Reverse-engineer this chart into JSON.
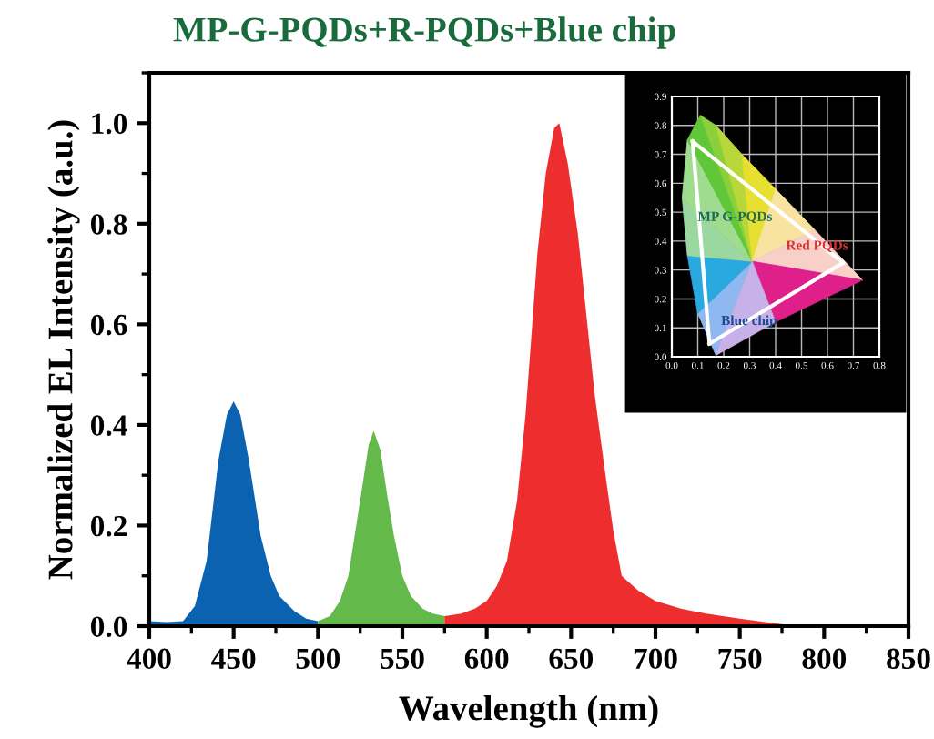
{
  "chart_data": [
    {
      "type": "area",
      "title": "MP-G-PQDs+R-PQDs+Blue chip",
      "xlabel": "Wavelength (nm)",
      "ylabel": "Normalized EL Intensity (a.u.)",
      "xlim": [
        400,
        850
      ],
      "xticks": [
        400,
        450,
        500,
        550,
        600,
        650,
        700,
        750,
        800,
        850
      ],
      "ylim": [
        0,
        1.1
      ],
      "yticks": [
        {
          "value": 0,
          "label": "0.0"
        },
        {
          "value": 0.2,
          "label": "0.2"
        },
        {
          "value": 0.4,
          "label": "0.4"
        },
        {
          "value": 0.6,
          "label": "0.6"
        },
        {
          "value": 0.8,
          "label": "0.8"
        },
        {
          "value": 1.0,
          "label": "1.0"
        }
      ],
      "grid": false,
      "legend": false,
      "series": [
        {
          "color": "#0a62b0",
          "x": [
            400,
            410,
            420,
            427,
            434,
            441,
            446,
            450,
            454,
            459,
            466,
            472,
            477,
            486,
            493,
            500
          ],
          "values": [
            0.01,
            0.008,
            0.01,
            0.04,
            0.13,
            0.33,
            0.42,
            0.447,
            0.42,
            0.33,
            0.18,
            0.1,
            0.06,
            0.03,
            0.015,
            0.01
          ]
        },
        {
          "color": "#63b94a",
          "x": [
            500,
            507,
            513,
            518,
            525,
            530,
            533,
            537,
            541,
            545,
            550,
            555,
            562,
            568,
            575
          ],
          "values": [
            0.01,
            0.02,
            0.05,
            0.1,
            0.25,
            0.36,
            0.388,
            0.35,
            0.26,
            0.18,
            0.1,
            0.06,
            0.035,
            0.025,
            0.02
          ]
        },
        {
          "color": "#ee2e2e",
          "x": [
            575,
            585,
            593,
            600,
            606,
            612,
            618,
            623,
            627,
            630,
            635,
            640,
            643,
            648,
            654,
            659,
            664,
            670,
            675,
            680,
            690,
            700,
            715,
            730,
            750,
            765,
            780
          ],
          "values": [
            0.02,
            0.025,
            0.035,
            0.05,
            0.08,
            0.13,
            0.25,
            0.42,
            0.6,
            0.74,
            0.9,
            0.99,
            1.0,
            0.92,
            0.78,
            0.62,
            0.46,
            0.31,
            0.19,
            0.1,
            0.07,
            0.05,
            0.035,
            0.025,
            0.015,
            0.008,
            0.002
          ]
        }
      ]
    },
    {
      "type": "line",
      "xlim": [
        0,
        0.8
      ],
      "xticks": [
        {
          "value": 0,
          "label": "0.0"
        },
        {
          "value": 0.1,
          "label": "0.1"
        },
        {
          "value": 0.2,
          "label": "0.2"
        },
        {
          "value": 0.3,
          "label": "0.3"
        },
        {
          "value": 0.4,
          "label": "0.4"
        },
        {
          "value": 0.5,
          "label": "0.5"
        },
        {
          "value": 0.6,
          "label": "0.6"
        },
        {
          "value": 0.7,
          "label": "0.7"
        },
        {
          "value": 0.8,
          "label": "0.8"
        }
      ],
      "ylim": [
        0,
        0.9
      ],
      "yticks": [
        {
          "value": 0,
          "label": "0.0"
        },
        {
          "value": 0.1,
          "label": "0.1"
        },
        {
          "value": 0.2,
          "label": "0.2"
        },
        {
          "value": 0.3,
          "label": "0.3"
        },
        {
          "value": 0.4,
          "label": "0.4"
        },
        {
          "value": 0.5,
          "label": "0.5"
        },
        {
          "value": 0.6,
          "label": "0.6"
        },
        {
          "value": 0.7,
          "label": "0.7"
        },
        {
          "value": 0.8,
          "label": "0.8"
        },
        {
          "value": 0.9,
          "label": "0.9"
        }
      ],
      "grid": true,
      "marker": "none",
      "series": [
        {
          "color": "#ffffff",
          "x": [
            0.08,
            0.66
          ],
          "values": [
            0.745,
            0.325
          ]
        },
        {
          "color": "#ffffff",
          "x": [
            0.145,
            0.66
          ],
          "values": [
            0.045,
            0.325
          ]
        },
        {
          "color": "#ffffff",
          "x": [
            0.08,
            0.145
          ],
          "values": [
            0.745,
            0.045
          ]
        }
      ],
      "annotations": [
        "MP G-PQDs",
        "Red PQDs",
        "Blue chip"
      ]
    }
  ]
}
